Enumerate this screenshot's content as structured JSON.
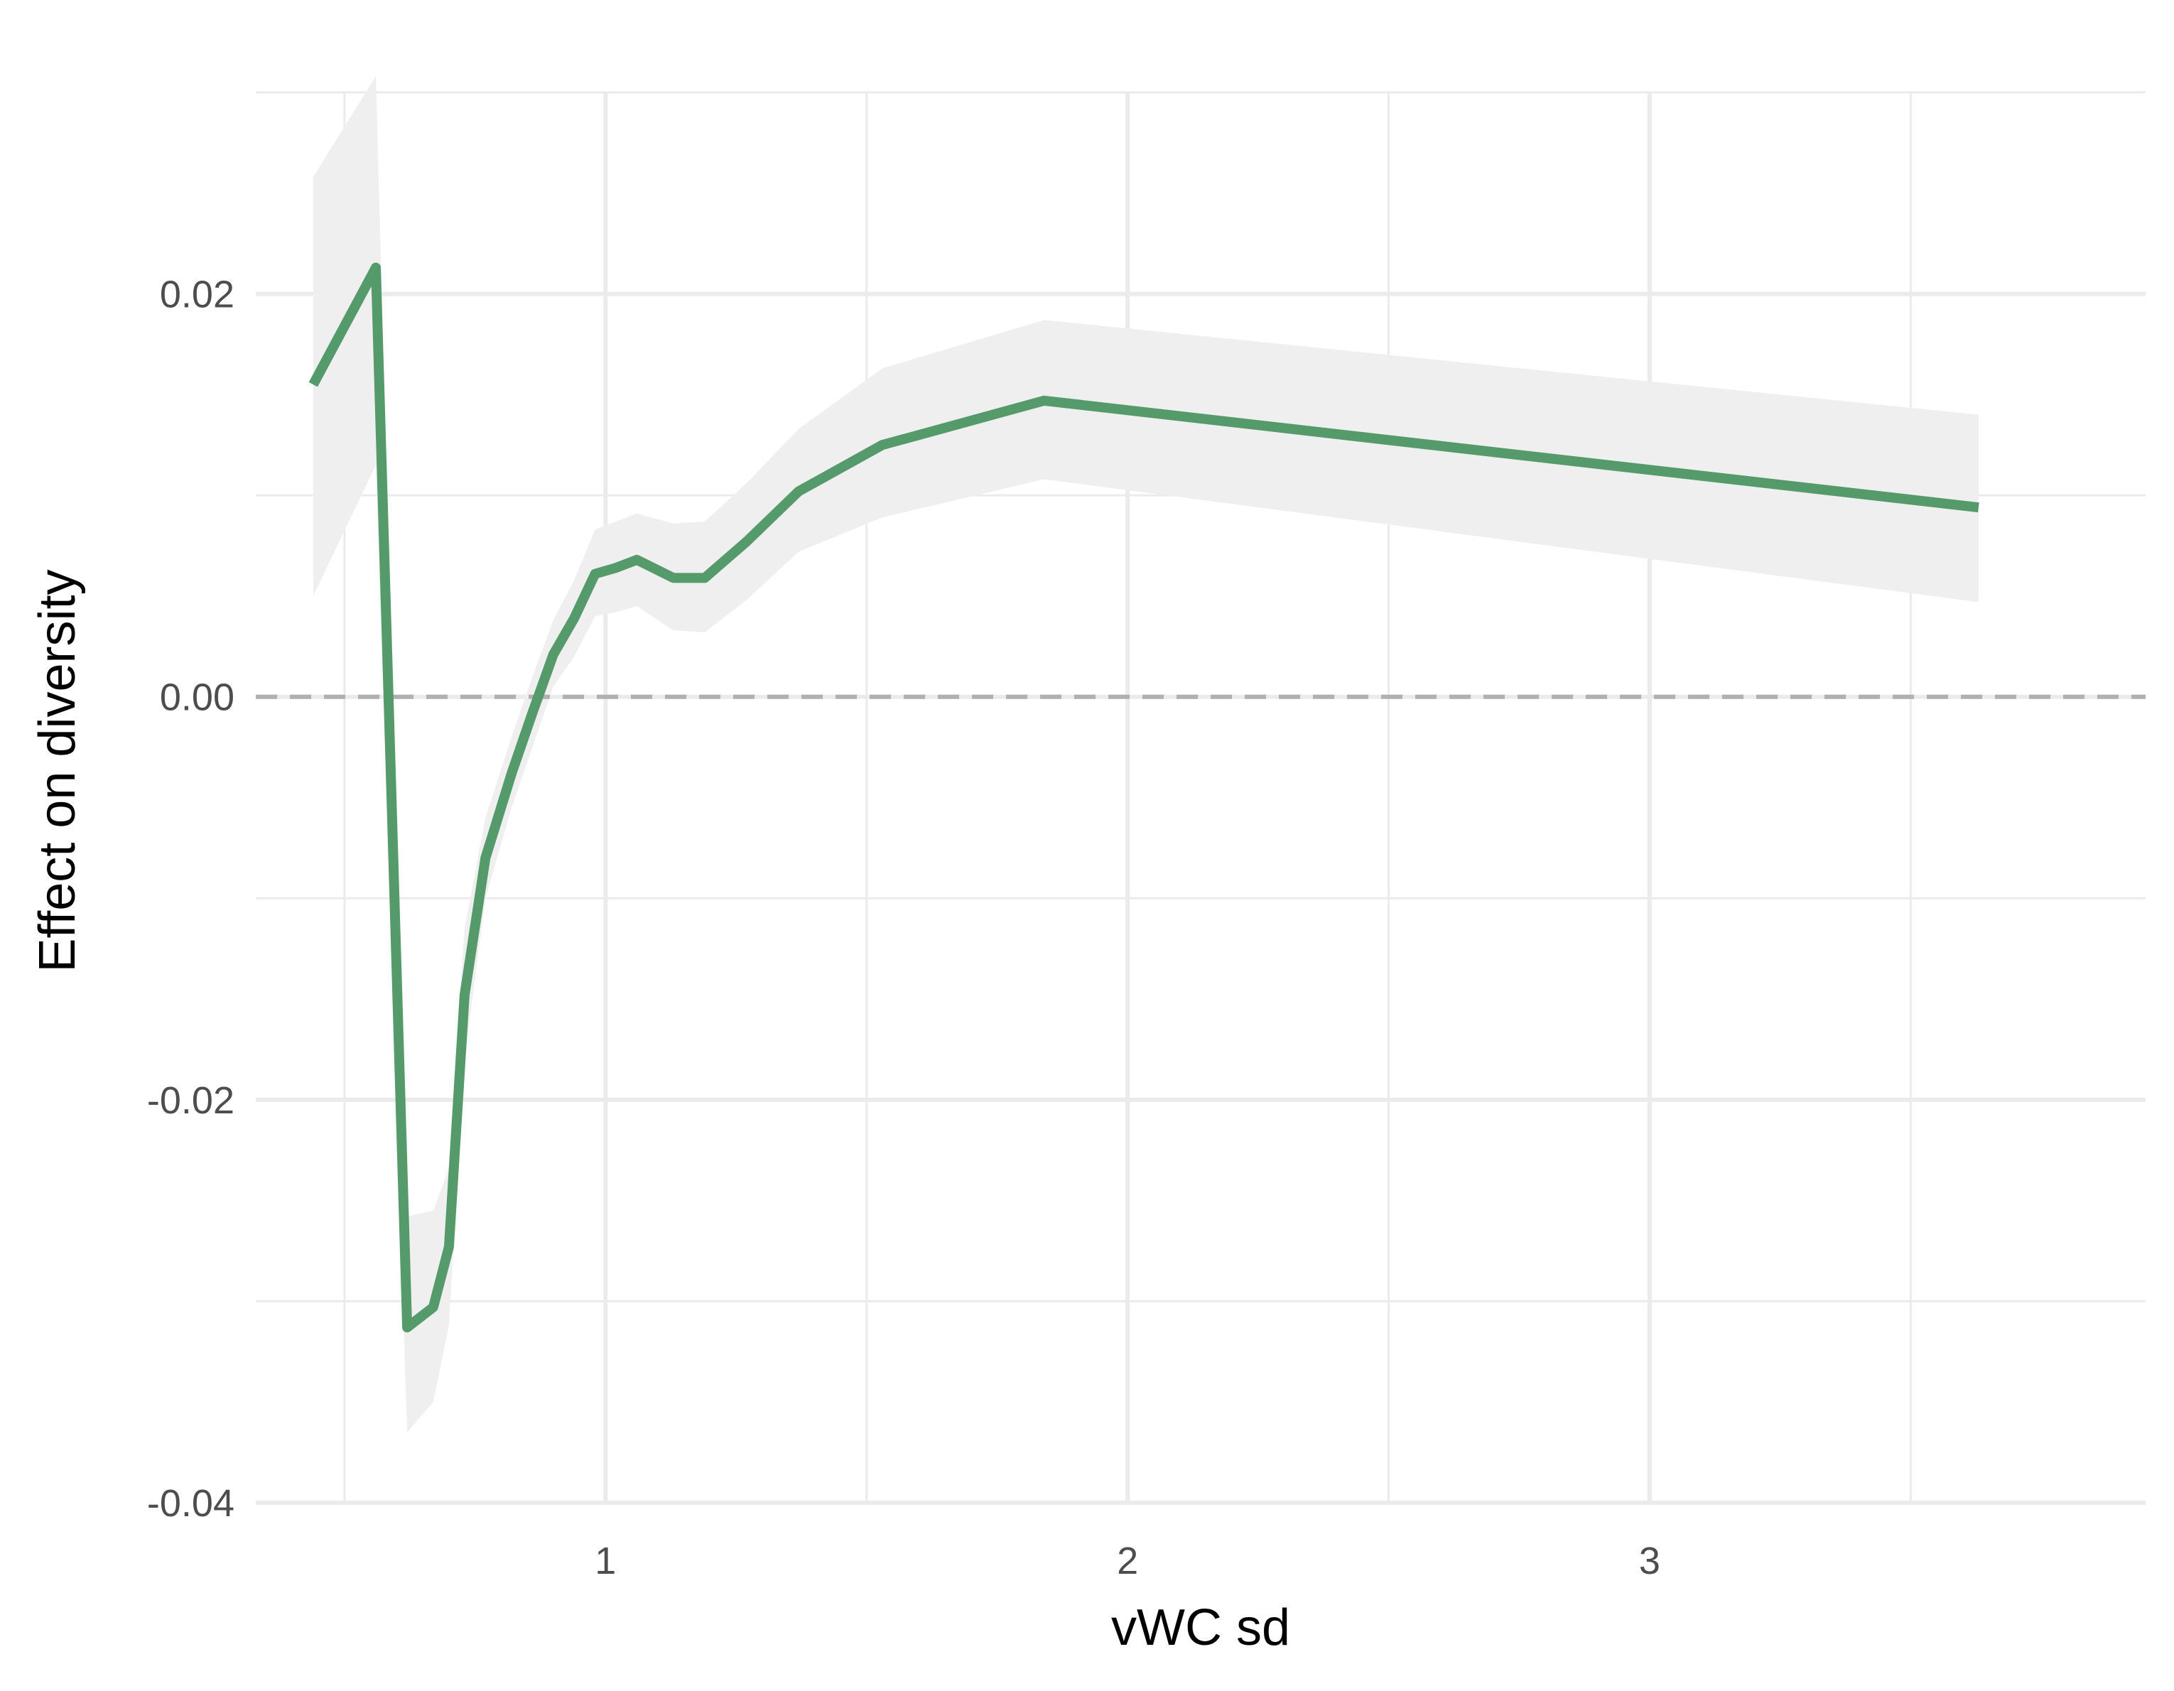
{
  "chart_data": {
    "type": "line",
    "title": "",
    "xlabel": "vWC sd",
    "ylabel": "Effect on diversity",
    "xlim": [
      0.33,
      3.95
    ],
    "ylim": [
      -0.04,
      0.03
    ],
    "x_ticks": [
      1,
      2,
      3
    ],
    "x_tick_labels": [
      "1",
      "2",
      "3"
    ],
    "x_minor_ticks": [
      0.5,
      1.5,
      2.5,
      3.5
    ],
    "y_ticks": [
      -0.04,
      -0.02,
      0.0,
      0.02
    ],
    "y_tick_labels": [
      "-0.04",
      "-0.02",
      "0.00",
      "0.02"
    ],
    "y_minor_ticks": [
      -0.03,
      -0.01,
      0.01,
      0.03
    ],
    "grid": true,
    "reference_line": {
      "y": 0,
      "style": "dashed",
      "color": "#b0b0b0"
    },
    "series": [
      {
        "color": "#559a6b",
        "band_color": "#efefef",
        "x": [
          0.44,
          0.56,
          0.62,
          0.67,
          0.7,
          0.73,
          0.77,
          0.82,
          0.86,
          0.9,
          0.94,
          0.98,
          1.02,
          1.06,
          1.13,
          1.19,
          1.27,
          1.37,
          1.53,
          1.84,
          3.63
        ],
        "y": [
          0.0155,
          0.0213,
          -0.0313,
          -0.0303,
          -0.0273,
          -0.0148,
          -0.008,
          -0.0038,
          -0.0008,
          0.0021,
          0.0039,
          0.0061,
          0.0064,
          0.0068,
          0.0059,
          0.0059,
          0.0077,
          0.0102,
          0.0125,
          0.0147,
          0.0094
        ],
        "lower": [
          0.005,
          0.0115,
          -0.0365,
          -0.035,
          -0.0312,
          -0.018,
          -0.01,
          -0.0055,
          -0.0025,
          0.0005,
          0.002,
          0.004,
          0.0042,
          0.0045,
          0.0033,
          0.0032,
          0.0048,
          0.0072,
          0.0089,
          0.0108,
          0.0047
        ],
        "upper": [
          0.0258,
          0.0308,
          -0.0258,
          -0.0255,
          -0.0234,
          -0.0115,
          -0.006,
          -0.002,
          0.001,
          0.0038,
          0.0058,
          0.0083,
          0.0087,
          0.0091,
          0.0086,
          0.0087,
          0.0106,
          0.0133,
          0.0163,
          0.0187,
          0.014
        ]
      }
    ]
  }
}
